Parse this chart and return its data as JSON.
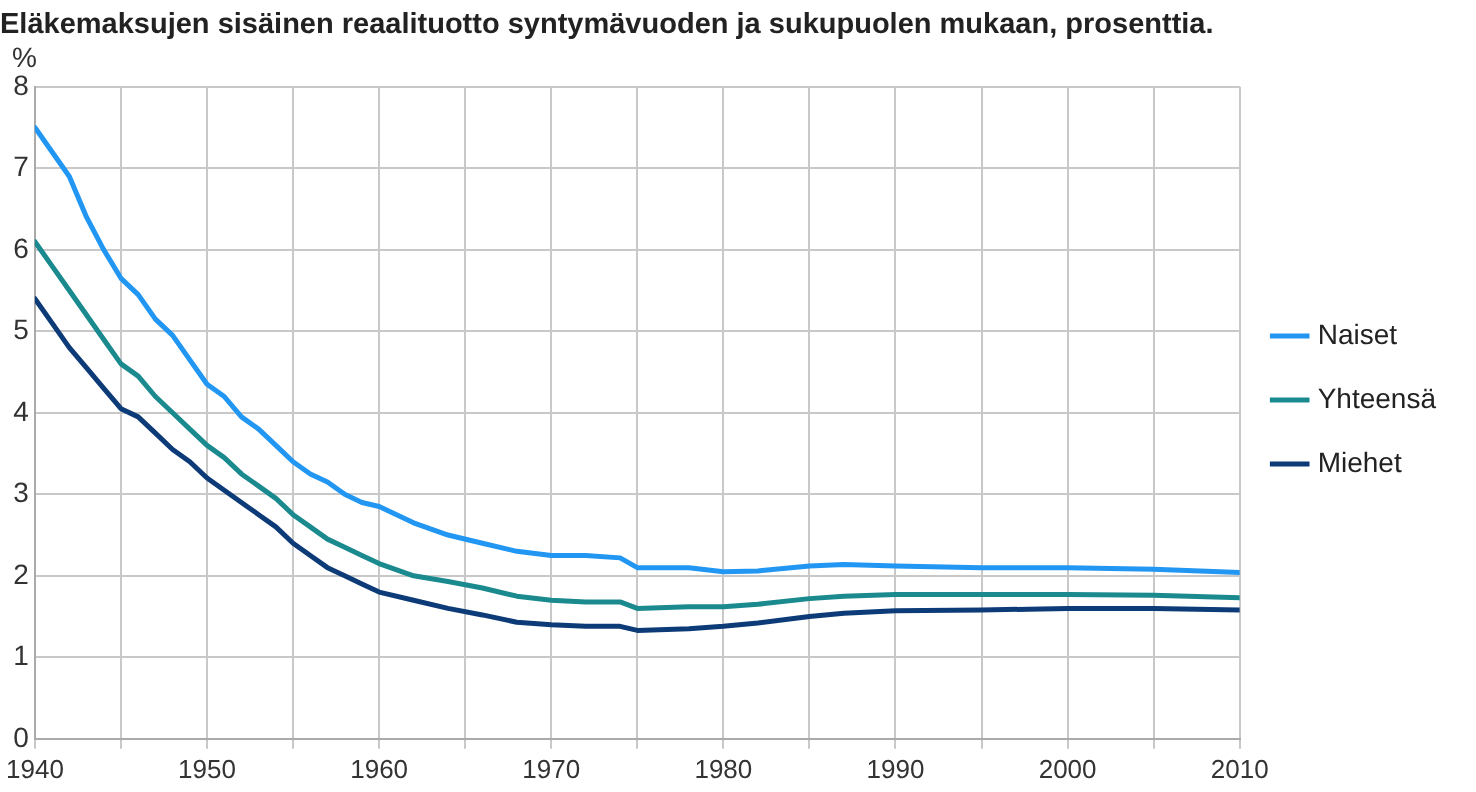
{
  "chart_data": {
    "type": "line",
    "title": "Eläkemaksujen sisäinen reaalituotto syntymävuoden ja sukupuolen mukaan, prosenttia.",
    "ylabel": "%",
    "x": [
      1940,
      1941,
      1942,
      1943,
      1944,
      1945,
      1946,
      1947,
      1948,
      1949,
      1950,
      1951,
      1952,
      1953,
      1954,
      1955,
      1956,
      1957,
      1958,
      1959,
      1960,
      1962,
      1964,
      1966,
      1968,
      1970,
      1972,
      1974,
      1975,
      1978,
      1980,
      1982,
      1985,
      1987,
      1990,
      1995,
      2000,
      2005,
      2010
    ],
    "series": [
      {
        "name": "Naiset",
        "color": "#2196f3",
        "values": [
          7.5,
          7.2,
          6.9,
          6.4,
          6.0,
          5.65,
          5.45,
          5.15,
          4.95,
          4.65,
          4.35,
          4.2,
          3.95,
          3.8,
          3.6,
          3.4,
          3.25,
          3.15,
          3.0,
          2.9,
          2.85,
          2.65,
          2.5,
          2.4,
          2.3,
          2.25,
          2.25,
          2.22,
          2.1,
          2.1,
          2.05,
          2.06,
          2.12,
          2.14,
          2.12,
          2.1,
          2.1,
          2.08,
          2.04
        ]
      },
      {
        "name": "Yhteensä",
        "color": "#1a8a8f",
        "values": [
          6.1,
          5.8,
          5.5,
          5.2,
          4.9,
          4.6,
          4.45,
          4.2,
          4.0,
          3.8,
          3.6,
          3.45,
          3.25,
          3.1,
          2.95,
          2.75,
          2.6,
          2.45,
          2.35,
          2.25,
          2.15,
          2.0,
          1.93,
          1.85,
          1.75,
          1.7,
          1.68,
          1.68,
          1.6,
          1.62,
          1.62,
          1.65,
          1.72,
          1.75,
          1.77,
          1.77,
          1.77,
          1.76,
          1.73
        ]
      },
      {
        "name": "Miehet",
        "color": "#0d3b78",
        "values": [
          5.4,
          5.1,
          4.8,
          4.55,
          4.3,
          4.05,
          3.95,
          3.75,
          3.55,
          3.4,
          3.2,
          3.05,
          2.9,
          2.75,
          2.6,
          2.4,
          2.25,
          2.1,
          2.0,
          1.9,
          1.8,
          1.7,
          1.6,
          1.52,
          1.43,
          1.4,
          1.38,
          1.38,
          1.33,
          1.35,
          1.38,
          1.42,
          1.5,
          1.54,
          1.57,
          1.58,
          1.6,
          1.6,
          1.58
        ]
      }
    ],
    "xlim": [
      1940,
      2010
    ],
    "xticks": [
      1940,
      {
        "value": 1945,
        "label": null
      },
      1950,
      {
        "value": 1955,
        "label": null
      },
      1960,
      {
        "value": 1965,
        "label": null
      },
      1970,
      {
        "value": 1975,
        "label": null
      },
      1980,
      {
        "value": 1985,
        "label": null
      },
      1990,
      {
        "value": 1995,
        "label": null
      },
      2000,
      {
        "value": 2005,
        "label": null
      },
      2010
    ],
    "ylim": [
      0,
      8
    ],
    "yticks": [
      0,
      1,
      2,
      3,
      4,
      5,
      6,
      7,
      8
    ],
    "grid": true,
    "legend": "right",
    "marker": "none",
    "line_style": "solid"
  }
}
